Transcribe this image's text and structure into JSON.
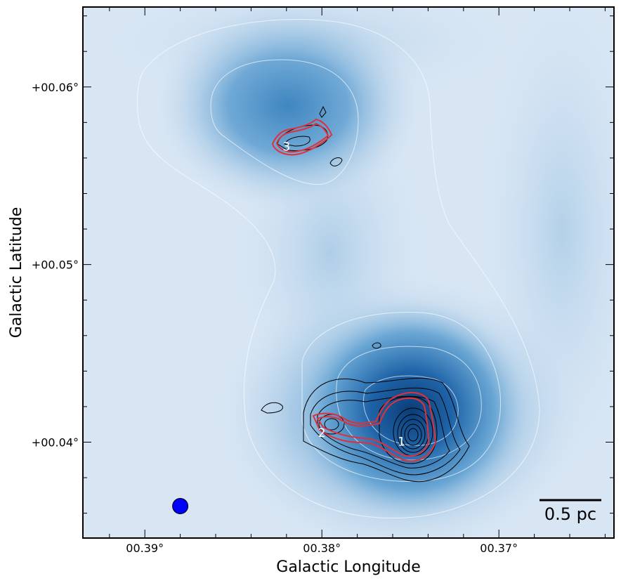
{
  "chart_data": {
    "type": "heatmap",
    "title": "",
    "xlabel": "Galactic Longitude",
    "ylabel": "Galactic Latitude",
    "xlim": [
      0.3935,
      0.3635
    ],
    "ylim": [
      0.0346,
      0.0645
    ],
    "x_ticks": [
      {
        "value": 0.39,
        "label": "00.39°"
      },
      {
        "value": 0.38,
        "label": "00.38°"
      },
      {
        "value": 0.37,
        "label": "00.37°"
      }
    ],
    "y_ticks": [
      {
        "value": 0.06,
        "label": "+00.06°"
      },
      {
        "value": 0.05,
        "label": "+00.05°"
      },
      {
        "value": 0.04,
        "label": "+00.04°"
      }
    ],
    "minor_tick_step": 0.002,
    "colormap": "Blues",
    "emission_peaks": [
      {
        "l": 0.3765,
        "b": 0.0415,
        "relative_peak": 1.0
      },
      {
        "l": 0.38,
        "b": 0.042,
        "relative_peak": 0.45
      },
      {
        "l": 0.3815,
        "b": 0.0598,
        "relative_peak": 0.8
      }
    ],
    "sources": [
      {
        "label": "1",
        "l": 0.3755,
        "b": 0.04
      },
      {
        "label": "2",
        "l": 0.38,
        "b": 0.0405
      },
      {
        "label": "3",
        "l": 0.382,
        "b": 0.0566
      }
    ],
    "contour_colors": {
      "background": "#ffffff",
      "interferometer": "#000000",
      "highlight": "#e0303a"
    },
    "beam": {
      "l": 0.388,
      "b": 0.0364,
      "color": "#0000ff"
    },
    "scalebar": {
      "label": "0.5 pc"
    },
    "grid": false
  }
}
